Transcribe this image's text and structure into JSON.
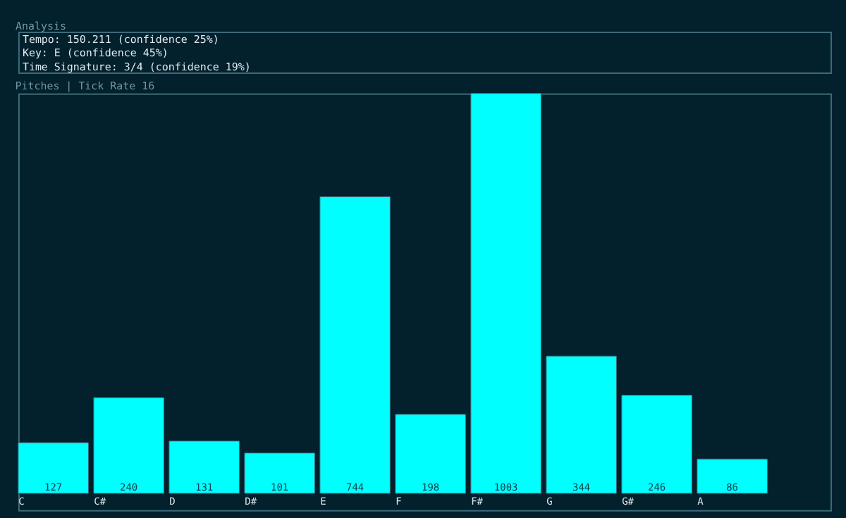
{
  "chart_data": {
    "type": "bar",
    "title": "Pitches | Tick Rate 16",
    "annotations": [
      "Analysis",
      "Tempo: 150.211 (confidence 25%)",
      "Key: E (confidence 45%)",
      "Time Signature: 3/4 (confidence 19%)"
    ],
    "categories": [
      "C",
      "C#",
      "D",
      "D#",
      "E",
      "F",
      "F#",
      "G",
      "G#",
      "A"
    ],
    "values": [
      127,
      240,
      131,
      101,
      744,
      198,
      1003,
      344,
      246,
      86
    ],
    "color": "#00ffff",
    "data_labels": true,
    "tick_labels": "x"
  }
}
